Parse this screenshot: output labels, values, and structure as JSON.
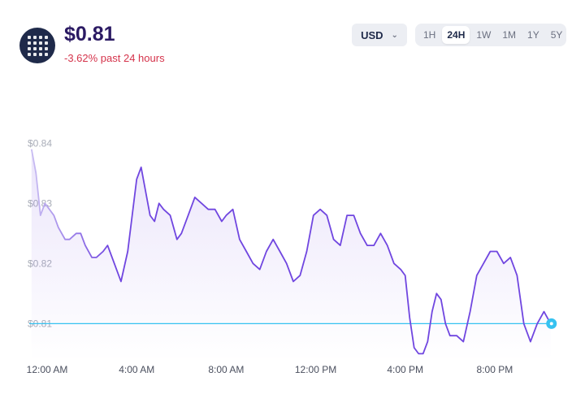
{
  "header": {
    "price": "$0.81",
    "change": "-3.62% past 24 hours",
    "logo_icon": "grid-dots-icon"
  },
  "controls": {
    "currency": "USD",
    "ranges": [
      "1H",
      "24H",
      "1W",
      "1M",
      "1Y",
      "5Y"
    ],
    "active_range": "24H"
  },
  "colors": {
    "line": "#7046e0",
    "current_line": "#36c2f0",
    "price_text": "#2b1a63",
    "change_text": "#d5334b"
  },
  "chart_data": {
    "type": "line",
    "y_tick_labels": [
      "$0.84",
      "$0.83",
      "$0.82",
      "$0.81"
    ],
    "y_ticks": [
      0.84,
      0.83,
      0.82,
      0.81
    ],
    "x_tick_labels": [
      "12:00 AM",
      "4:00 AM",
      "8:00 AM",
      "12:00 PM",
      "4:00 PM",
      "8:00 PM"
    ],
    "x_ticks": [
      0,
      4,
      8,
      12,
      16,
      20
    ],
    "xlim": [
      -0.8,
      22.8
    ],
    "ylim": [
      0.8037,
      0.8476
    ],
    "current_value": 0.81,
    "x": [
      -0.7,
      -0.5,
      -0.3,
      -0.1,
      0.1,
      0.3,
      0.5,
      0.8,
      1.0,
      1.3,
      1.5,
      1.7,
      2.0,
      2.2,
      2.5,
      2.7,
      3.0,
      3.3,
      3.6,
      3.8,
      4.0,
      4.2,
      4.4,
      4.6,
      4.8,
      5.0,
      5.2,
      5.5,
      5.8,
      6.0,
      6.3,
      6.6,
      6.9,
      7.2,
      7.5,
      7.8,
      8.0,
      8.3,
      8.6,
      8.9,
      9.2,
      9.5,
      9.8,
      10.1,
      10.4,
      10.7,
      11.0,
      11.3,
      11.6,
      11.9,
      12.2,
      12.5,
      12.8,
      13.1,
      13.4,
      13.7,
      14.0,
      14.3,
      14.6,
      14.9,
      15.2,
      15.5,
      15.8,
      16.0,
      16.2,
      16.4,
      16.6,
      16.8,
      17.0,
      17.2,
      17.4,
      17.6,
      17.8,
      18.0,
      18.3,
      18.6,
      18.9,
      19.2,
      19.5,
      19.8,
      20.1,
      20.4,
      20.7,
      21.0,
      21.3,
      21.6,
      21.9,
      22.2,
      22.5
    ],
    "y": [
      0.839,
      0.835,
      0.828,
      0.83,
      0.829,
      0.828,
      0.826,
      0.824,
      0.824,
      0.825,
      0.825,
      0.823,
      0.821,
      0.821,
      0.822,
      0.823,
      0.82,
      0.817,
      0.822,
      0.828,
      0.834,
      0.836,
      0.832,
      0.828,
      0.827,
      0.83,
      0.829,
      0.828,
      0.824,
      0.825,
      0.828,
      0.831,
      0.83,
      0.829,
      0.829,
      0.827,
      0.828,
      0.829,
      0.824,
      0.822,
      0.82,
      0.819,
      0.822,
      0.824,
      0.822,
      0.82,
      0.817,
      0.818,
      0.822,
      0.828,
      0.829,
      0.828,
      0.824,
      0.823,
      0.828,
      0.828,
      0.825,
      0.823,
      0.823,
      0.825,
      0.823,
      0.82,
      0.819,
      0.818,
      0.811,
      0.806,
      0.805,
      0.805,
      0.807,
      0.812,
      0.815,
      0.814,
      0.81,
      0.808,
      0.808,
      0.807,
      0.812,
      0.818,
      0.82,
      0.822,
      0.822,
      0.82,
      0.821,
      0.818,
      0.81,
      0.807,
      0.81,
      0.812,
      0.81
    ]
  }
}
